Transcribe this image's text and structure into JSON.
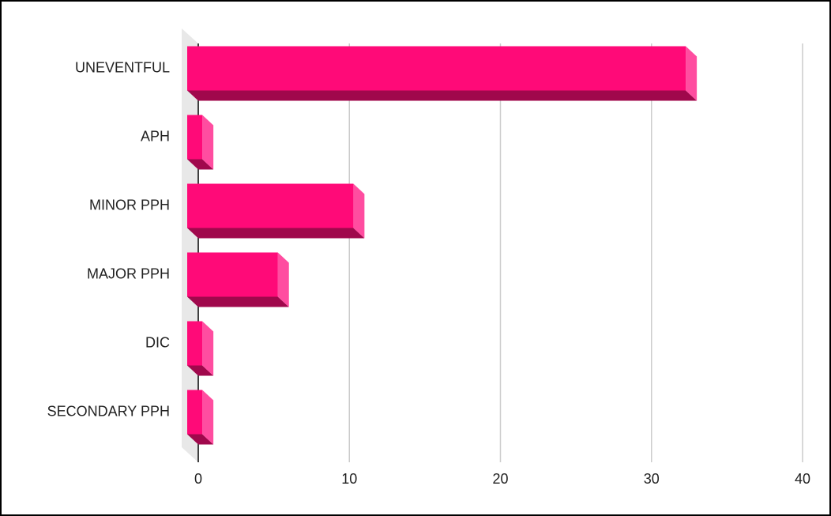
{
  "chart_data": {
    "type": "bar",
    "orientation": "horizontal",
    "categories": [
      "UNEVENTFUL",
      "APH",
      "MINOR PPH",
      "MAJOR PPH",
      "DIC",
      "SECONDARY PPH"
    ],
    "values": [
      33,
      1,
      11,
      6,
      1,
      1
    ],
    "color": "#ff0a78",
    "xlim": [
      0,
      40
    ],
    "xticks": [
      0,
      10,
      20,
      30,
      40
    ],
    "grid": true
  }
}
